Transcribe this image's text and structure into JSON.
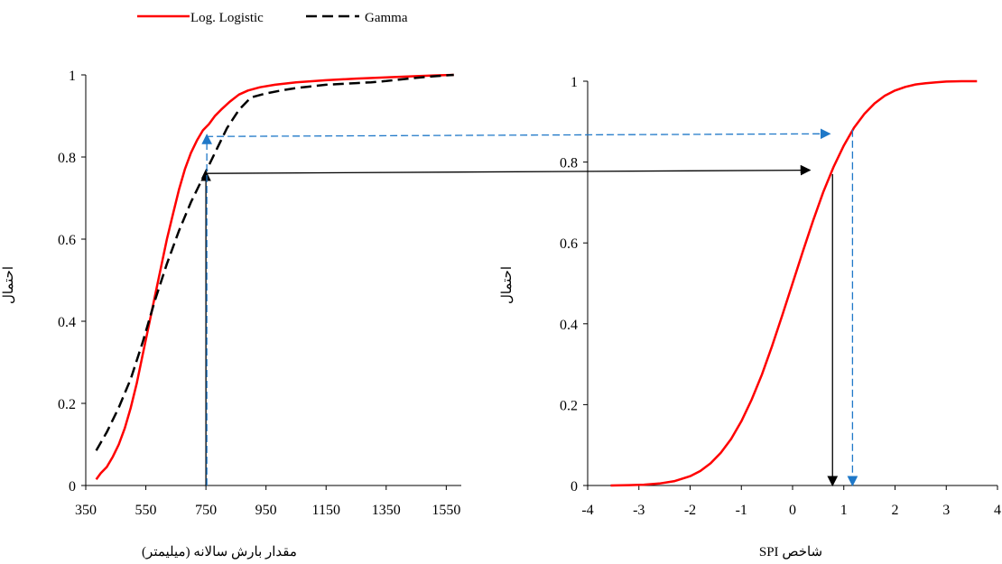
{
  "legend": [
    {
      "label": "Log. Logistic",
      "color": "#ff0000",
      "dash": "solid"
    },
    {
      "label": "Gamma",
      "color": "#000000",
      "dash": "dashed"
    }
  ],
  "arrow_colors": {
    "black": "#000000",
    "blue": "#1f78c8"
  },
  "chart_data": [
    {
      "type": "line",
      "xlabel": "مقدار  بارش سالانه (میلیمتر)",
      "ylabel": "احتمال",
      "xlim": [
        350,
        1600
      ],
      "ylim": [
        0,
        1
      ],
      "xticks": [
        "350",
        "550",
        "750",
        "950",
        "1150",
        "1350",
        "1550"
      ],
      "yticks": [
        "0",
        "0.2",
        "0.4",
        "0.6",
        "0.8",
        "1"
      ],
      "grid": false,
      "legend_position": "top-left",
      "series": [
        {
          "name": "Log. Logistic",
          "color": "#ff0000",
          "x": [
            385,
            400,
            420,
            440,
            460,
            480,
            500,
            520,
            540,
            560,
            580,
            600,
            620,
            640,
            660,
            680,
            700,
            720,
            740,
            760,
            780,
            800,
            830,
            860,
            890,
            930,
            980,
            1050,
            1150,
            1250,
            1350,
            1450,
            1520,
            1575
          ],
          "y": [
            0.015,
            0.03,
            0.045,
            0.07,
            0.1,
            0.14,
            0.19,
            0.25,
            0.32,
            0.39,
            0.46,
            0.53,
            0.6,
            0.66,
            0.72,
            0.77,
            0.81,
            0.84,
            0.865,
            0.88,
            0.9,
            0.915,
            0.935,
            0.952,
            0.962,
            0.97,
            0.976,
            0.982,
            0.987,
            0.991,
            0.994,
            0.997,
            0.999,
            1.0
          ]
        },
        {
          "name": "Gamma",
          "color": "#000000",
          "x": [
            385,
            420,
            460,
            500,
            540,
            580,
            620,
            660,
            700,
            740,
            780,
            820,
            860,
            900,
            950,
            1000,
            1050,
            1100,
            1150,
            1200,
            1250,
            1300,
            1350,
            1400,
            1450,
            1500,
            1550,
            1575
          ],
          "y": [
            0.085,
            0.13,
            0.19,
            0.26,
            0.35,
            0.45,
            0.54,
            0.62,
            0.69,
            0.75,
            0.81,
            0.87,
            0.915,
            0.945,
            0.955,
            0.962,
            0.968,
            0.972,
            0.976,
            0.978,
            0.98,
            0.982,
            0.985,
            0.989,
            0.993,
            0.996,
            0.999,
            1.0
          ]
        }
      ]
    },
    {
      "type": "line",
      "xlabel": "شاخص SPI",
      "ylabel": "احتمال",
      "xlim": [
        -4,
        4
      ],
      "ylim": [
        0,
        1
      ],
      "xticks": [
        "-4",
        "-3",
        "-2",
        "-1",
        "0",
        "1",
        "2",
        "3",
        "4"
      ],
      "yticks": [
        "0",
        "0.2",
        "0.4",
        "0.6",
        "0.8",
        "1"
      ],
      "grid": false,
      "series": [
        {
          "name": "Log. Logistic",
          "color": "#ff0000",
          "x": [
            -3.55,
            -3.2,
            -2.9,
            -2.6,
            -2.3,
            -2.0,
            -1.8,
            -1.6,
            -1.4,
            -1.2,
            -1.0,
            -0.8,
            -0.6,
            -0.4,
            -0.2,
            0.0,
            0.2,
            0.4,
            0.6,
            0.8,
            1.0,
            1.2,
            1.4,
            1.6,
            1.8,
            2.0,
            2.2,
            2.4,
            2.6,
            2.8,
            3.0,
            3.3,
            3.6
          ],
          "y": [
            0.0,
            0.001,
            0.002,
            0.005,
            0.011,
            0.023,
            0.036,
            0.055,
            0.081,
            0.115,
            0.159,
            0.212,
            0.274,
            0.345,
            0.421,
            0.5,
            0.579,
            0.655,
            0.726,
            0.788,
            0.841,
            0.885,
            0.919,
            0.945,
            0.964,
            0.977,
            0.986,
            0.992,
            0.995,
            0.997,
            0.999,
            1.0,
            1.0
          ]
        }
      ]
    }
  ]
}
